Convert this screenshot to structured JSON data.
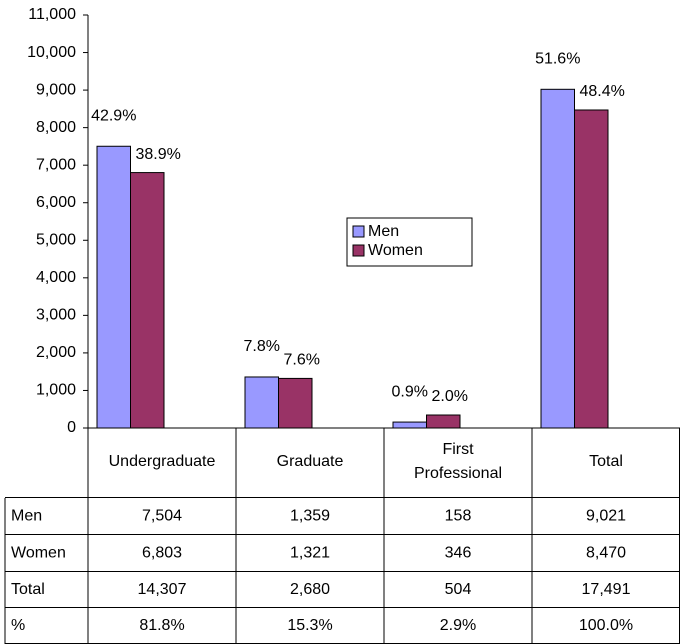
{
  "chart_data": {
    "type": "bar",
    "categories": [
      "Undergraduate",
      "Graduate",
      "First Professional",
      "Total"
    ],
    "series": [
      {
        "name": "Men",
        "color": "#9999ff",
        "values": [
          7504,
          1359,
          158,
          9021
        ],
        "labels": [
          "42.9%",
          "7.8%",
          "0.9%",
          "51.6%"
        ]
      },
      {
        "name": "Women",
        "color": "#993366",
        "values": [
          6803,
          1321,
          346,
          8470
        ],
        "labels": [
          "38.9%",
          "7.6%",
          "2.0%",
          "48.4%"
        ]
      }
    ],
    "ylim": [
      0,
      11000
    ],
    "yticks": [
      0,
      {
        "value": 1000,
        "label": "1,000"
      },
      {
        "value": 2000,
        "label": "2,000"
      },
      {
        "value": 3000,
        "label": "3,000"
      },
      {
        "value": 4000,
        "label": "4,000"
      },
      {
        "value": 5000,
        "label": "5,000"
      },
      {
        "value": 6000,
        "label": "6,000"
      },
      {
        "value": 7000,
        "label": "7,000"
      },
      {
        "value": 8000,
        "label": "8,000"
      },
      {
        "value": 9000,
        "label": "9,000"
      },
      {
        "value": 10000,
        "label": "10,000"
      },
      {
        "value": 11000,
        "label": "11,000"
      }
    ],
    "grid": false,
    "legend": "center"
  },
  "table": {
    "rows": [
      [
        "Men",
        "7,504",
        "1,359",
        "158",
        "9,021"
      ],
      [
        "Women",
        "6,803",
        "1,321",
        "346",
        "8,470"
      ],
      [
        "Total",
        "14,307",
        "2,680",
        "504",
        "17,491"
      ],
      [
        "%",
        "81.8%",
        "15.3%",
        "2.9%",
        "100.0%"
      ]
    ]
  }
}
